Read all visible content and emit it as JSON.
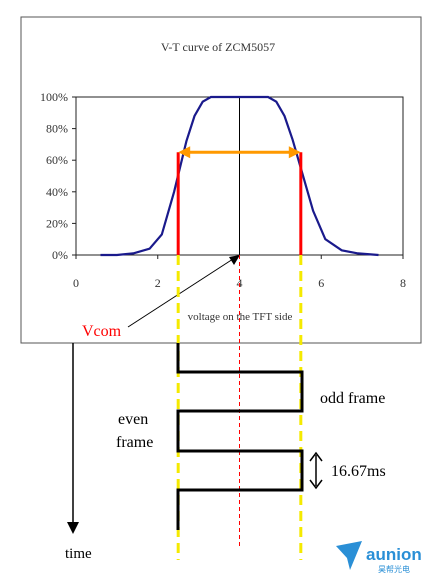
{
  "chart_data": {
    "type": "line",
    "title": "V-T curve of ZCM5057",
    "xlabel": "voltage on the TFT side",
    "ylabel": "",
    "xlim": [
      0,
      8
    ],
    "ylim": [
      0,
      100
    ],
    "x_ticks": [
      "0",
      "2",
      "4",
      "6",
      "8"
    ],
    "y_ticks": [
      "0%",
      "20%",
      "40%",
      "60%",
      "80%",
      "100%"
    ],
    "series": [
      {
        "color": "#1a1a8c",
        "x": [
          0.6,
          1.0,
          1.4,
          1.8,
          2.1,
          2.4,
          2.7,
          2.9,
          3.1,
          3.3,
          3.6,
          4.0,
          4.4,
          4.7,
          4.9,
          5.1,
          5.3,
          5.5,
          5.8,
          6.1,
          6.5,
          6.9,
          7.4
        ],
        "y": [
          0,
          0,
          1,
          4,
          13,
          40,
          72,
          88,
          97,
          100,
          100,
          100,
          100,
          100,
          97,
          88,
          73,
          55,
          28,
          10,
          3,
          1,
          0
        ]
      }
    ],
    "annotations": {
      "vcom_x": 4.0,
      "red_lines_x": [
        2.5,
        5.5
      ],
      "red_lines_top": 65,
      "arrow_y": 65
    }
  },
  "labels": {
    "vcom": "Vcom",
    "odd_frame": "odd frame",
    "even_frame_1": "even",
    "even_frame_2": "frame",
    "period": "16.67ms",
    "time": "time"
  },
  "logo": {
    "text": "aunion",
    "subtext": "昊帮光电",
    "color": "#2a8fd6"
  },
  "colors": {
    "curve": "#1a1a8c",
    "red": "#ff0000",
    "orange": "#ff9900",
    "yellow": "#f5ea00",
    "wave": "#000000"
  }
}
